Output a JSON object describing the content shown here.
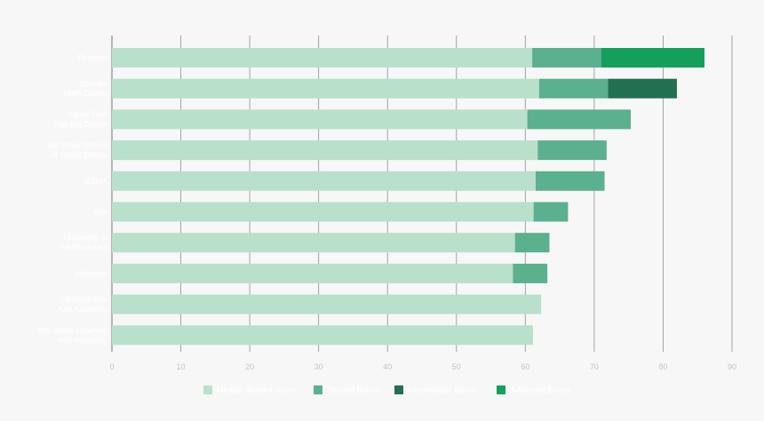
{
  "chart_data": {
    "type": "bar",
    "orientation": "horizontal",
    "stacked": true,
    "title": "",
    "xlabel": "",
    "ylabel": "",
    "xlim": [
      0,
      90
    ],
    "x_ticks": [
      0,
      10,
      20,
      30,
      40,
      50,
      60,
      70,
      80,
      90
    ],
    "grid": true,
    "legend_position": "bottom",
    "categories": [
      "Pearson",
      "Science Math Center",
      "Three Tree Training Center",
      "Mill Road School of Visual Effects",
      "ESMA",
      "Arts",
      "University of Hertfordshire",
      "Hebrides",
      "Hertfordshire Arts Academy",
      "Arts within Learning Arts Academy"
    ],
    "series": [
      {
        "name": "Median Student Score",
        "color": "#b8e0cb",
        "values": [
          61,
          62,
          60.3,
          61.8,
          61.5,
          61.2,
          58.5,
          58.2,
          62.3,
          61.1
        ]
      },
      {
        "name": "Student Bonus",
        "color": "#5ab08f",
        "values": [
          10,
          10,
          15,
          10,
          10,
          5,
          5,
          5,
          0,
          0
        ]
      },
      {
        "name": "Intermediate Bonus",
        "color": "#226f52",
        "values": [
          0,
          10,
          0,
          0,
          0,
          0,
          0,
          0,
          0,
          0
        ]
      },
      {
        "name": "Advanced Bonus",
        "color": "#14a05a",
        "values": [
          15,
          0,
          0,
          0,
          0,
          0,
          0,
          0,
          0,
          0
        ]
      }
    ]
  }
}
